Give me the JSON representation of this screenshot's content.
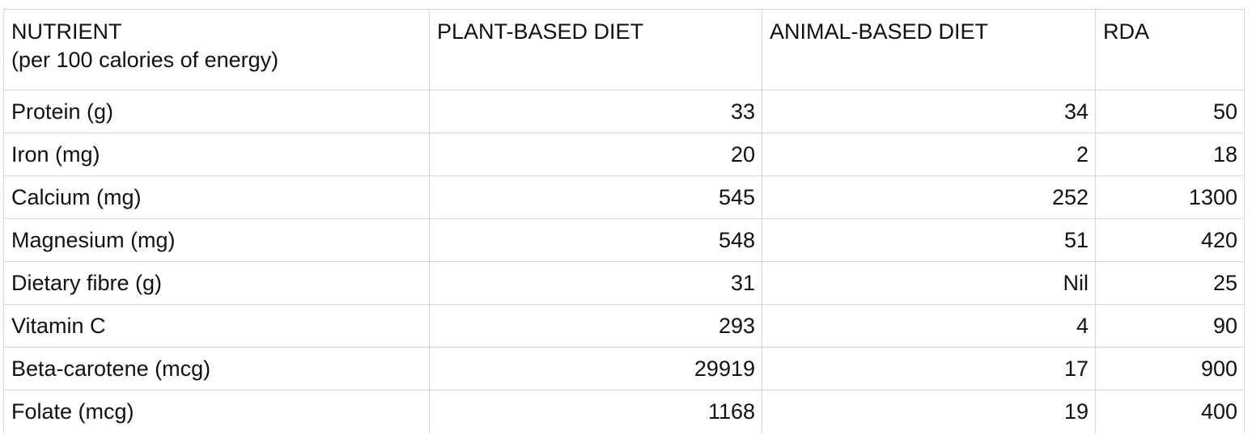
{
  "table": {
    "headers": {
      "nutrient_line1": "NUTRIENT",
      "nutrient_line2": "(per 100 calories of energy)",
      "plant": "PLANT-BASED DIET",
      "animal": "ANIMAL-BASED DIET",
      "rda": "RDA"
    },
    "rows": [
      {
        "nutrient": "Protein (g)",
        "plant": "33",
        "animal": "34",
        "rda": "50"
      },
      {
        "nutrient": "Iron (mg)",
        "plant": "20",
        "animal": "2",
        "rda": "18"
      },
      {
        "nutrient": "Calcium (mg)",
        "plant": "545",
        "animal": "252",
        "rda": "1300"
      },
      {
        "nutrient": "Magnesium (mg)",
        "plant": "548",
        "animal": "51",
        "rda": "420"
      },
      {
        "nutrient": "Dietary fibre (g)",
        "plant": "31",
        "animal": "Nil",
        "rda": "25"
      },
      {
        "nutrient": "Vitamin C",
        "plant": "293",
        "animal": "4",
        "rda": "90"
      },
      {
        "nutrient": "Beta-carotene (mcg)",
        "plant": "29919",
        "animal": "17",
        "rda": "900"
      },
      {
        "nutrient": "Folate (mcg)",
        "plant": "1168",
        "animal": "19",
        "rda": "400"
      }
    ]
  }
}
